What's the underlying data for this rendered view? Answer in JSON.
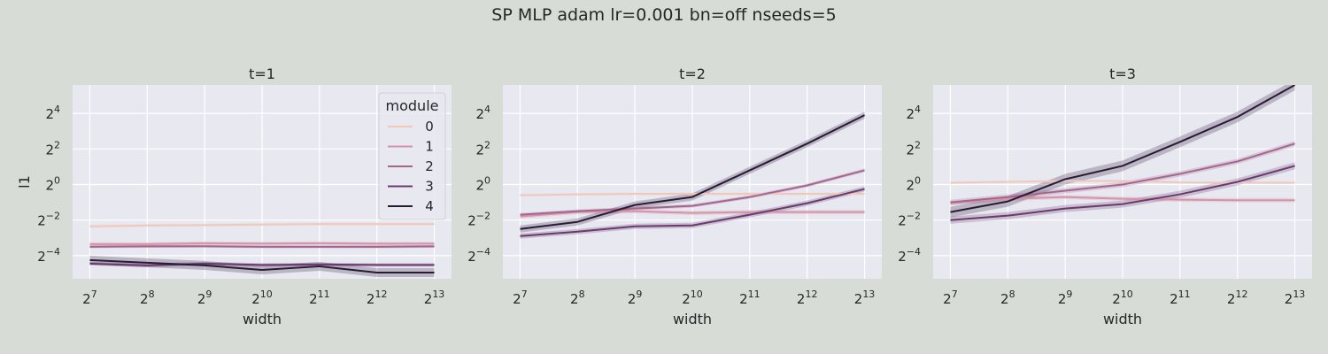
{
  "figure": {
    "title": "SP MLP adam lr=0.001 bn=off nseeds=5",
    "background": "#d7ddd6",
    "axes_face": "#e8e8f1",
    "grid_color": "#ffffff"
  },
  "legend": {
    "title": "module",
    "location": "upper right of first panel",
    "entries": [
      "0",
      "1",
      "2",
      "3",
      "4"
    ]
  },
  "series_colors": {
    "0": "#f0c9bd",
    "1": "#d493a6",
    "2": "#a5658f",
    "3": "#6a3a6f",
    "4": "#2a1a38"
  },
  "chart_data": [
    {
      "type": "line",
      "title": "t=1",
      "xlabel": "width",
      "ylabel": "l1",
      "x_scale": "log2",
      "y_scale": "log2",
      "x": [
        128,
        256,
        512,
        1024,
        2048,
        4096,
        8192
      ],
      "x_tick_exponents": [
        "7",
        "8",
        "9",
        "10",
        "11",
        "12",
        "13"
      ],
      "y_tick_exponents": [
        "4",
        "2",
        "0",
        "−2",
        "−4"
      ],
      "xlim_log2": [
        6.7,
        13.3
      ],
      "ylim_log2": [
        -5.3,
        5.6
      ],
      "grid": true,
      "legend": true,
      "series": [
        {
          "name": "0",
          "values_log2": [
            -2.35,
            -2.3,
            -2.28,
            -2.25,
            -2.22,
            -2.22,
            -2.22
          ],
          "band": 0.08
        },
        {
          "name": "1",
          "values_log2": [
            -3.35,
            -3.35,
            -3.3,
            -3.32,
            -3.3,
            -3.33,
            -3.32
          ],
          "band": 0.1
        },
        {
          "name": "2",
          "values_log2": [
            -3.5,
            -3.48,
            -3.47,
            -3.5,
            -3.5,
            -3.5,
            -3.48
          ],
          "band": 0.08
        },
        {
          "name": "3",
          "values_log2": [
            -4.45,
            -4.55,
            -4.45,
            -4.52,
            -4.5,
            -4.52,
            -4.52
          ],
          "band": 0.1
        },
        {
          "name": "4",
          "values_log2": [
            -4.25,
            -4.4,
            -4.55,
            -4.8,
            -4.6,
            -4.95,
            -4.95
          ],
          "band": 0.25
        }
      ]
    },
    {
      "type": "line",
      "title": "t=2",
      "xlabel": "width",
      "ylabel": "",
      "x_scale": "log2",
      "y_scale": "log2",
      "x": [
        128,
        256,
        512,
        1024,
        2048,
        4096,
        8192
      ],
      "x_tick_exponents": [
        "7",
        "8",
        "9",
        "10",
        "11",
        "12",
        "13"
      ],
      "y_tick_exponents": [
        "4",
        "2",
        "0",
        "−2",
        "−4"
      ],
      "xlim_log2": [
        6.7,
        13.3
      ],
      "ylim_log2": [
        -5.3,
        5.6
      ],
      "grid": true,
      "legend": false,
      "series": [
        {
          "name": "0",
          "values_log2": [
            -0.6,
            -0.55,
            -0.52,
            -0.52,
            -0.52,
            -0.52,
            -0.52
          ],
          "band": 0.08
        },
        {
          "name": "1",
          "values_log2": [
            -1.8,
            -1.55,
            -1.5,
            -1.6,
            -1.55,
            -1.55,
            -1.55
          ],
          "band": 0.12
        },
        {
          "name": "2",
          "values_log2": [
            -1.7,
            -1.5,
            -1.35,
            -1.2,
            -0.7,
            -0.05,
            0.8
          ],
          "band": 0.1
        },
        {
          "name": "3",
          "values_log2": [
            -2.9,
            -2.65,
            -2.35,
            -2.3,
            -1.7,
            -1.05,
            -0.25
          ],
          "band": 0.15
        },
        {
          "name": "4",
          "values_log2": [
            -2.5,
            -2.1,
            -1.15,
            -0.7,
            0.8,
            2.3,
            3.9
          ],
          "band": 0.2
        }
      ]
    },
    {
      "type": "line",
      "title": "t=3",
      "xlabel": "width",
      "ylabel": "",
      "x_scale": "log2",
      "y_scale": "log2",
      "x": [
        128,
        256,
        512,
        1024,
        2048,
        4096,
        8192
      ],
      "x_tick_exponents": [
        "7",
        "8",
        "9",
        "10",
        "11",
        "12",
        "13"
      ],
      "y_tick_exponents": [
        "4",
        "2",
        "0",
        "−2",
        "−4"
      ],
      "xlim_log2": [
        6.7,
        13.3
      ],
      "ylim_log2": [
        -5.3,
        5.6
      ],
      "grid": true,
      "legend": false,
      "series": [
        {
          "name": "0",
          "values_log2": [
            0.1,
            0.15,
            0.2,
            0.2,
            0.12,
            0.1,
            0.1
          ],
          "band": 0.06
        },
        {
          "name": "1",
          "values_log2": [
            -1.05,
            -0.8,
            -0.7,
            -0.8,
            -0.85,
            -0.88,
            -0.88
          ],
          "band": 0.12
        },
        {
          "name": "2",
          "values_log2": [
            -1.0,
            -0.7,
            -0.35,
            0.0,
            0.6,
            1.3,
            2.3
          ],
          "band": 0.15
        },
        {
          "name": "3",
          "values_log2": [
            -2.0,
            -1.75,
            -1.35,
            -1.1,
            -0.55,
            0.15,
            1.05
          ],
          "band": 0.2
        },
        {
          "name": "4",
          "values_log2": [
            -1.55,
            -0.95,
            0.3,
            1.05,
            2.4,
            3.8,
            5.6
          ],
          "band": 0.3
        }
      ]
    }
  ]
}
